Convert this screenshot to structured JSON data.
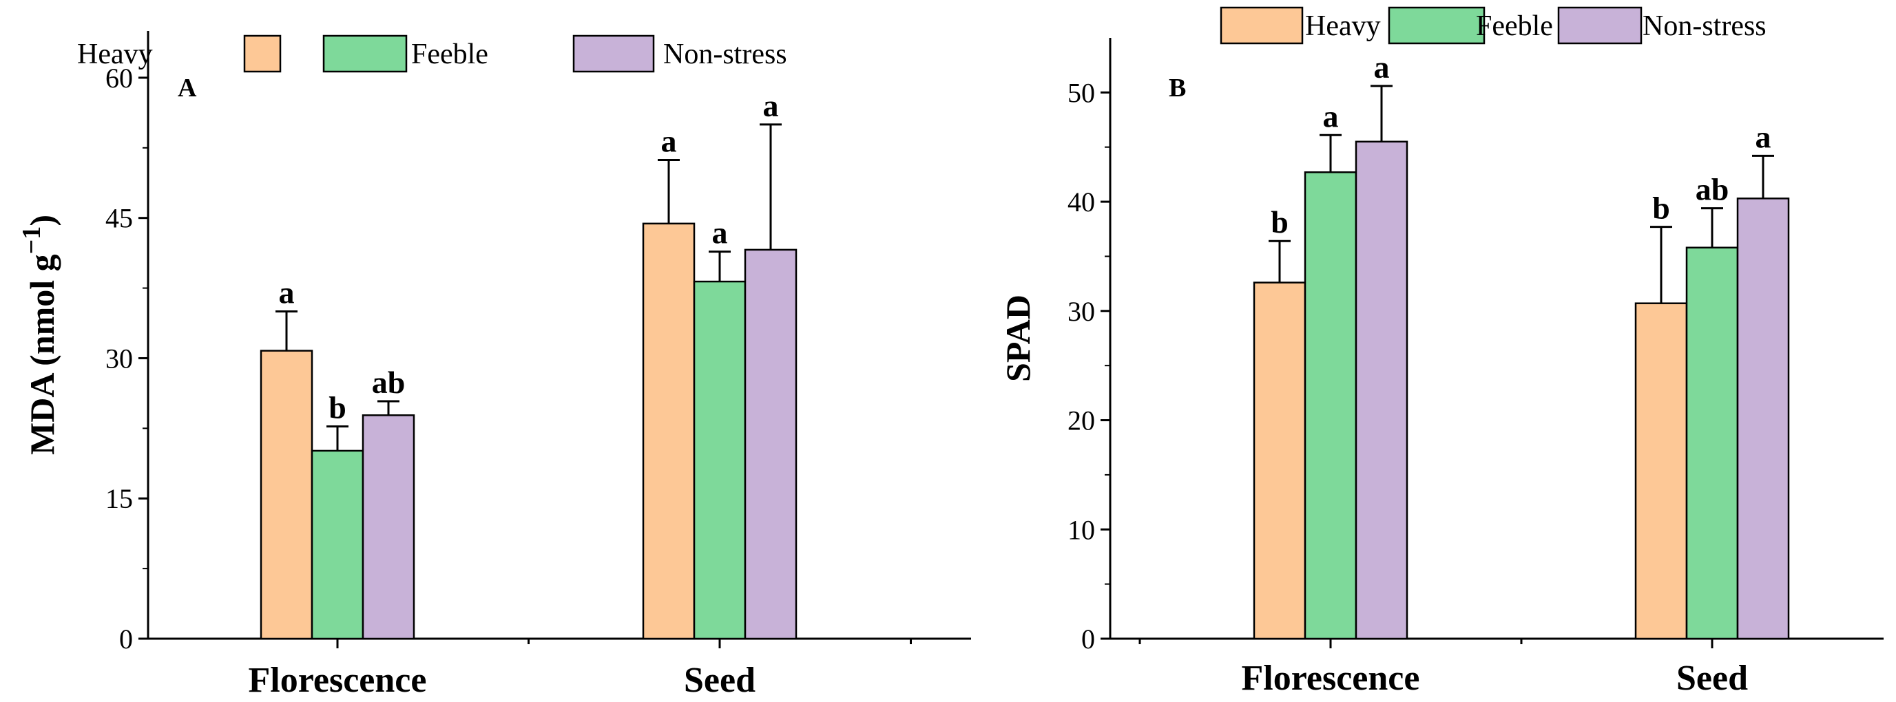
{
  "colors": {
    "heavy": "#FDC896",
    "feeble": "#7ED99A",
    "non_stress": "#C8B2D8",
    "stroke": "#000000"
  },
  "chart_data": [
    {
      "type": "bar",
      "panel_label": "A",
      "title": "",
      "ylabel": {
        "main": "MDA (nmol g",
        "sup": "−1",
        "close": ")"
      },
      "xlabel": "",
      "ylim": [
        0,
        65
      ],
      "yticks": [
        0,
        15,
        30,
        45,
        60
      ],
      "categories": [
        "Florescence",
        "Seed"
      ],
      "series": [
        {
          "name": "Heavy",
          "color_key": "heavy",
          "values": [
            30.8,
            44.4
          ],
          "errors": [
            4.2,
            6.8
          ],
          "letters": [
            "a",
            "a"
          ]
        },
        {
          "name": "Feeble",
          "color_key": "feeble",
          "values": [
            20.1,
            38.2
          ],
          "errors": [
            2.6,
            3.2
          ],
          "letters": [
            "b",
            "a"
          ]
        },
        {
          "name": "Non-stress",
          "color_key": "non_stress",
          "values": [
            23.9,
            41.6
          ],
          "errors": [
            1.5,
            13.4
          ],
          "letters": [
            "ab",
            "a"
          ]
        }
      ]
    },
    {
      "type": "bar",
      "panel_label": "B",
      "title": "",
      "ylabel": {
        "main": "SPAD",
        "sup": "",
        "close": ""
      },
      "xlabel": "",
      "ylim": [
        0,
        55
      ],
      "yticks": [
        0,
        10,
        20,
        30,
        40,
        50
      ],
      "categories": [
        "Florescence",
        "Seed"
      ],
      "series": [
        {
          "name": "Heavy",
          "color_key": "heavy",
          "values": [
            32.6,
            30.7
          ],
          "errors": [
            3.8,
            7.0
          ],
          "letters": [
            "b",
            "b"
          ]
        },
        {
          "name": "Feeble",
          "color_key": "feeble",
          "values": [
            42.7,
            35.8
          ],
          "errors": [
            3.4,
            3.6
          ],
          "letters": [
            "a",
            "ab"
          ]
        },
        {
          "name": "Non-stress",
          "color_key": "non_stress",
          "values": [
            45.5,
            40.3
          ],
          "errors": [
            5.1,
            3.9
          ],
          "letters": [
            "a",
            "a"
          ]
        }
      ]
    }
  ]
}
